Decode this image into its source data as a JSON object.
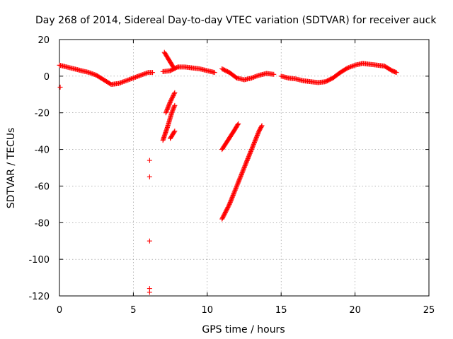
{
  "chart_data": {
    "type": "scatter",
    "title": "Day 268 of 2014, Sidereal Day-to-day VTEC variation (SDTVAR) for receiver auck",
    "xlabel": "GPS time / hours",
    "ylabel": "SDTVAR / TECUs",
    "xlim": [
      0,
      25
    ],
    "ylim": [
      -120,
      20
    ],
    "xticks": [
      0,
      5,
      10,
      15,
      20,
      25
    ],
    "yticks": [
      -120,
      -100,
      -80,
      -60,
      -40,
      -20,
      0,
      20
    ],
    "xtick_labels": [
      "0",
      "5",
      "10",
      "15",
      "20",
      "25"
    ],
    "ytick_labels": [
      "-120",
      "-100",
      "-80",
      "-60",
      "-40",
      "-20",
      "0",
      "20"
    ],
    "grid": true,
    "marker": "+",
    "series": [
      {
        "name": "SDTVAR",
        "color": "#ff0000",
        "segments": [
          {
            "name": "main-band-a",
            "points": [
              [
                0.0,
                6.0
              ],
              [
                0.5,
                5.0
              ],
              [
                1.0,
                4.0
              ],
              [
                1.5,
                3.0
              ],
              [
                2.0,
                2.0
              ],
              [
                2.5,
                0.5
              ],
              [
                3.0,
                -2.0
              ],
              [
                3.5,
                -4.5
              ],
              [
                4.0,
                -4.0
              ],
              [
                4.5,
                -2.5
              ],
              [
                5.0,
                -1.0
              ],
              [
                5.5,
                0.5
              ],
              [
                6.0,
                2.0
              ],
              [
                6.3,
                2.0
              ]
            ]
          },
          {
            "name": "main-band-b",
            "points": [
              [
                7.0,
                2.5
              ],
              [
                7.5,
                3.0
              ],
              [
                8.0,
                5.0
              ],
              [
                8.5,
                5.0
              ],
              [
                9.0,
                4.5
              ],
              [
                9.5,
                4.0
              ],
              [
                10.0,
                3.0
              ],
              [
                10.5,
                2.0
              ]
            ]
          },
          {
            "name": "main-band-c",
            "points": [
              [
                11.0,
                4.0
              ],
              [
                11.5,
                2.0
              ],
              [
                12.0,
                -1.0
              ],
              [
                12.5,
                -2.0
              ],
              [
                13.0,
                -1.0
              ],
              [
                13.5,
                0.5
              ],
              [
                14.0,
                1.5
              ],
              [
                14.5,
                1.0
              ]
            ]
          },
          {
            "name": "main-band-d",
            "points": [
              [
                15.0,
                0.0
              ],
              [
                15.5,
                -1.0
              ],
              [
                16.0,
                -1.5
              ],
              [
                16.5,
                -2.5
              ],
              [
                17.0,
                -3.0
              ],
              [
                17.5,
                -3.5
              ],
              [
                18.0,
                -3.0
              ],
              [
                18.5,
                -1.0
              ],
              [
                19.0,
                2.0
              ],
              [
                19.5,
                4.5
              ],
              [
                20.0,
                6.0
              ],
              [
                20.5,
                7.0
              ],
              [
                21.0,
                6.5
              ],
              [
                21.5,
                6.0
              ],
              [
                22.0,
                5.5
              ],
              [
                22.5,
                3.0
              ],
              [
                22.8,
                2.0
              ]
            ]
          },
          {
            "name": "early-outlier",
            "points": [
              [
                0.05,
                -6.0
              ]
            ]
          },
          {
            "name": "rising-arc-7h",
            "points": [
              [
                7.1,
                13.0
              ],
              [
                7.4,
                9.0
              ],
              [
                7.7,
                5.0
              ]
            ]
          },
          {
            "name": "branch-7h-a",
            "points": [
              [
                7.2,
                -20.0
              ],
              [
                7.5,
                -14.0
              ],
              [
                7.8,
                -9.0
              ]
            ]
          },
          {
            "name": "branch-7h-b",
            "points": [
              [
                7.0,
                -35.0
              ],
              [
                7.3,
                -28.0
              ],
              [
                7.6,
                -20.0
              ],
              [
                7.8,
                -16.0
              ]
            ]
          },
          {
            "name": "branch-7h-c",
            "points": [
              [
                7.5,
                -34.0
              ],
              [
                7.8,
                -30.0
              ]
            ]
          },
          {
            "name": "arc-11h",
            "points": [
              [
                11.0,
                -40.0
              ],
              [
                11.4,
                -35.0
              ],
              [
                11.8,
                -30.0
              ],
              [
                12.1,
                -26.0
              ]
            ]
          },
          {
            "name": "long-drop",
            "points": [
              [
                11.0,
                -78.0
              ],
              [
                11.5,
                -70.0
              ],
              [
                12.0,
                -60.0
              ],
              [
                12.5,
                -50.0
              ],
              [
                13.0,
                -40.0
              ],
              [
                13.5,
                -30.0
              ],
              [
                13.7,
                -27.0
              ]
            ]
          },
          {
            "name": "isolated-6h",
            "points": [
              [
                6.1,
                -46.0
              ],
              [
                6.1,
                -55.0
              ],
              [
                6.1,
                -90.0
              ],
              [
                6.1,
                -116.0
              ],
              [
                6.1,
                -118.0
              ]
            ]
          }
        ]
      }
    ]
  }
}
